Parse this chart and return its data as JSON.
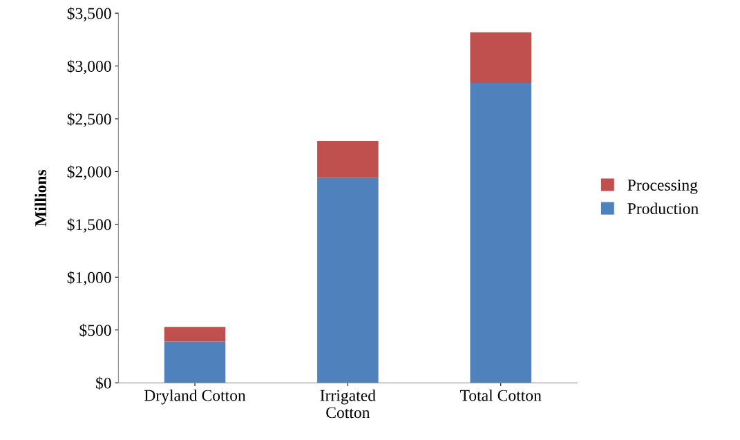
{
  "chart_data": {
    "type": "bar",
    "stacked": true,
    "ylabel": "Millions",
    "categories": [
      "Dryland Cotton",
      "Irrigated\nCotton",
      "Total Cotton"
    ],
    "series": [
      {
        "name": "Production",
        "color": "#4f81bd",
        "values": [
          390,
          1940,
          2840
        ]
      },
      {
        "name": "Processing",
        "color": "#c0504d",
        "values": [
          140,
          350,
          480
        ]
      }
    ],
    "ylim": [
      0,
      3500
    ],
    "yticks": [
      {
        "value": 0,
        "label": "$0"
      },
      {
        "value": 500,
        "label": "$500"
      },
      {
        "value": 1000,
        "label": "$1,000"
      },
      {
        "value": 1500,
        "label": "$1,500"
      },
      {
        "value": 2000,
        "label": "$2,000"
      },
      {
        "value": 2500,
        "label": "$2,500"
      },
      {
        "value": 3000,
        "label": "$3,000"
      },
      {
        "value": 3500,
        "label": "$3,500"
      }
    ],
    "grid": false,
    "legend": "right"
  }
}
